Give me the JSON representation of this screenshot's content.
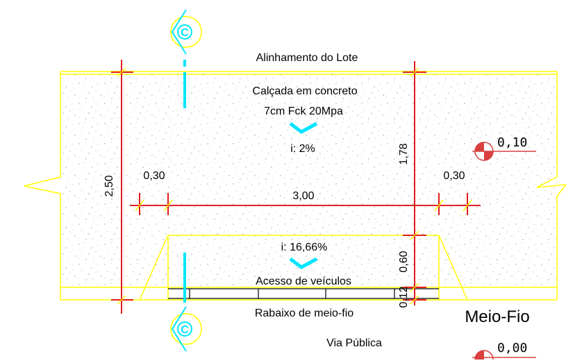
{
  "labels": {
    "lot_alignment": "Alinhamento do Lote",
    "sidewalk_line1": "Calçada em concreto",
    "sidewalk_line2": "7cm Fck 20Mpa",
    "slope_sidewalk": "i: 2%",
    "slope_access": "i: 16,66%",
    "vehicle_access": "Acesso de veículos",
    "curb_lowering": "Rabaixo de meio-fio",
    "public_road": "Via Pública",
    "curb": "Meio-Fio"
  },
  "dimensions": {
    "total_width": "2,50",
    "left_offset": "0,30",
    "right_offset": "0,30",
    "access_width": "3,00",
    "upper_depth": "1,78",
    "ramp_depth": "0,60",
    "curb_depth": "0,12"
  },
  "levels": {
    "sidewalk": "0,10",
    "road": "0,00"
  },
  "section_marker": {
    "letter": "C"
  },
  "colors": {
    "outline": "#ffff00",
    "dimension": "#e00000",
    "section": "#00e5ff",
    "level_marker": "#d94040",
    "hatch": "#888888"
  }
}
